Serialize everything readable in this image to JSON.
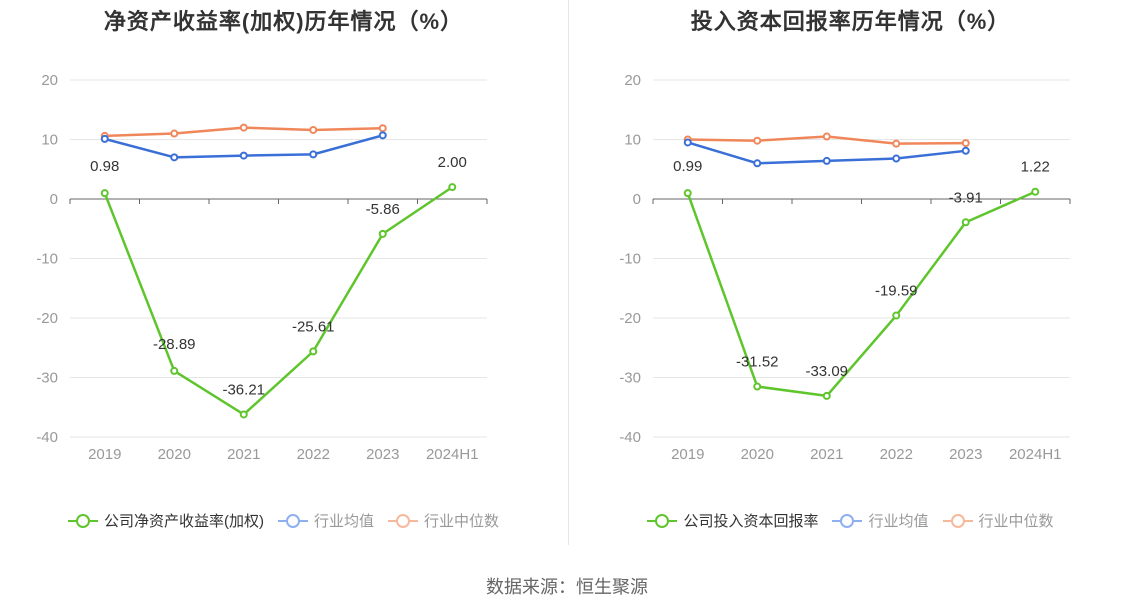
{
  "source": "数据来源：恒生聚源",
  "colors": {
    "company": "#5fc52c",
    "avg": "#3a6fd8",
    "median": "#f0875a",
    "avg_legend": "#8fb0f0",
    "median_legend": "#f7b99c",
    "grid": "#e6e6e6",
    "axis": "#666666"
  },
  "chart_data": [
    {
      "type": "line",
      "title": "净资产收益率(加权)历年情况（%）",
      "categories": [
        "2019",
        "2020",
        "2021",
        "2022",
        "2023",
        "2024H1"
      ],
      "ylim": [
        -40,
        20
      ],
      "yticks": [
        20,
        10,
        0,
        -10,
        -20,
        -30,
        -40
      ],
      "grid": true,
      "legend_position": "bottom",
      "series": [
        {
          "name": "公司净资产收益率(加权)",
          "values": [
            0.98,
            -28.89,
            -36.21,
            -25.61,
            -5.86,
            2.0
          ],
          "labels": [
            "0.98",
            "-28.89",
            "-36.21",
            "-25.61",
            "-5.86",
            "2.00"
          ]
        },
        {
          "name": "行业均值",
          "values": [
            10.1,
            7.0,
            7.3,
            7.5,
            10.7,
            null
          ]
        },
        {
          "name": "行业中位数",
          "values": [
            10.6,
            11.0,
            12.0,
            11.6,
            11.9,
            null
          ]
        }
      ]
    },
    {
      "type": "line",
      "title": "投入资本回报率历年情况（%）",
      "categories": [
        "2019",
        "2020",
        "2021",
        "2022",
        "2023",
        "2024H1"
      ],
      "ylim": [
        -40,
        20
      ],
      "yticks": [
        20,
        10,
        0,
        -10,
        -20,
        -30,
        -40
      ],
      "grid": true,
      "legend_position": "bottom",
      "series": [
        {
          "name": "公司投入资本回报率",
          "values": [
            0.99,
            -31.52,
            -33.09,
            -19.59,
            -3.91,
            1.22
          ],
          "labels": [
            "0.99",
            "-31.52",
            "-33.09",
            "-19.59",
            "-3.91",
            "1.22"
          ]
        },
        {
          "name": "行业均值",
          "values": [
            9.5,
            6.0,
            6.4,
            6.8,
            8.1,
            null
          ]
        },
        {
          "name": "行业中位数",
          "values": [
            10.0,
            9.8,
            10.5,
            9.3,
            9.4,
            null
          ]
        }
      ]
    }
  ]
}
